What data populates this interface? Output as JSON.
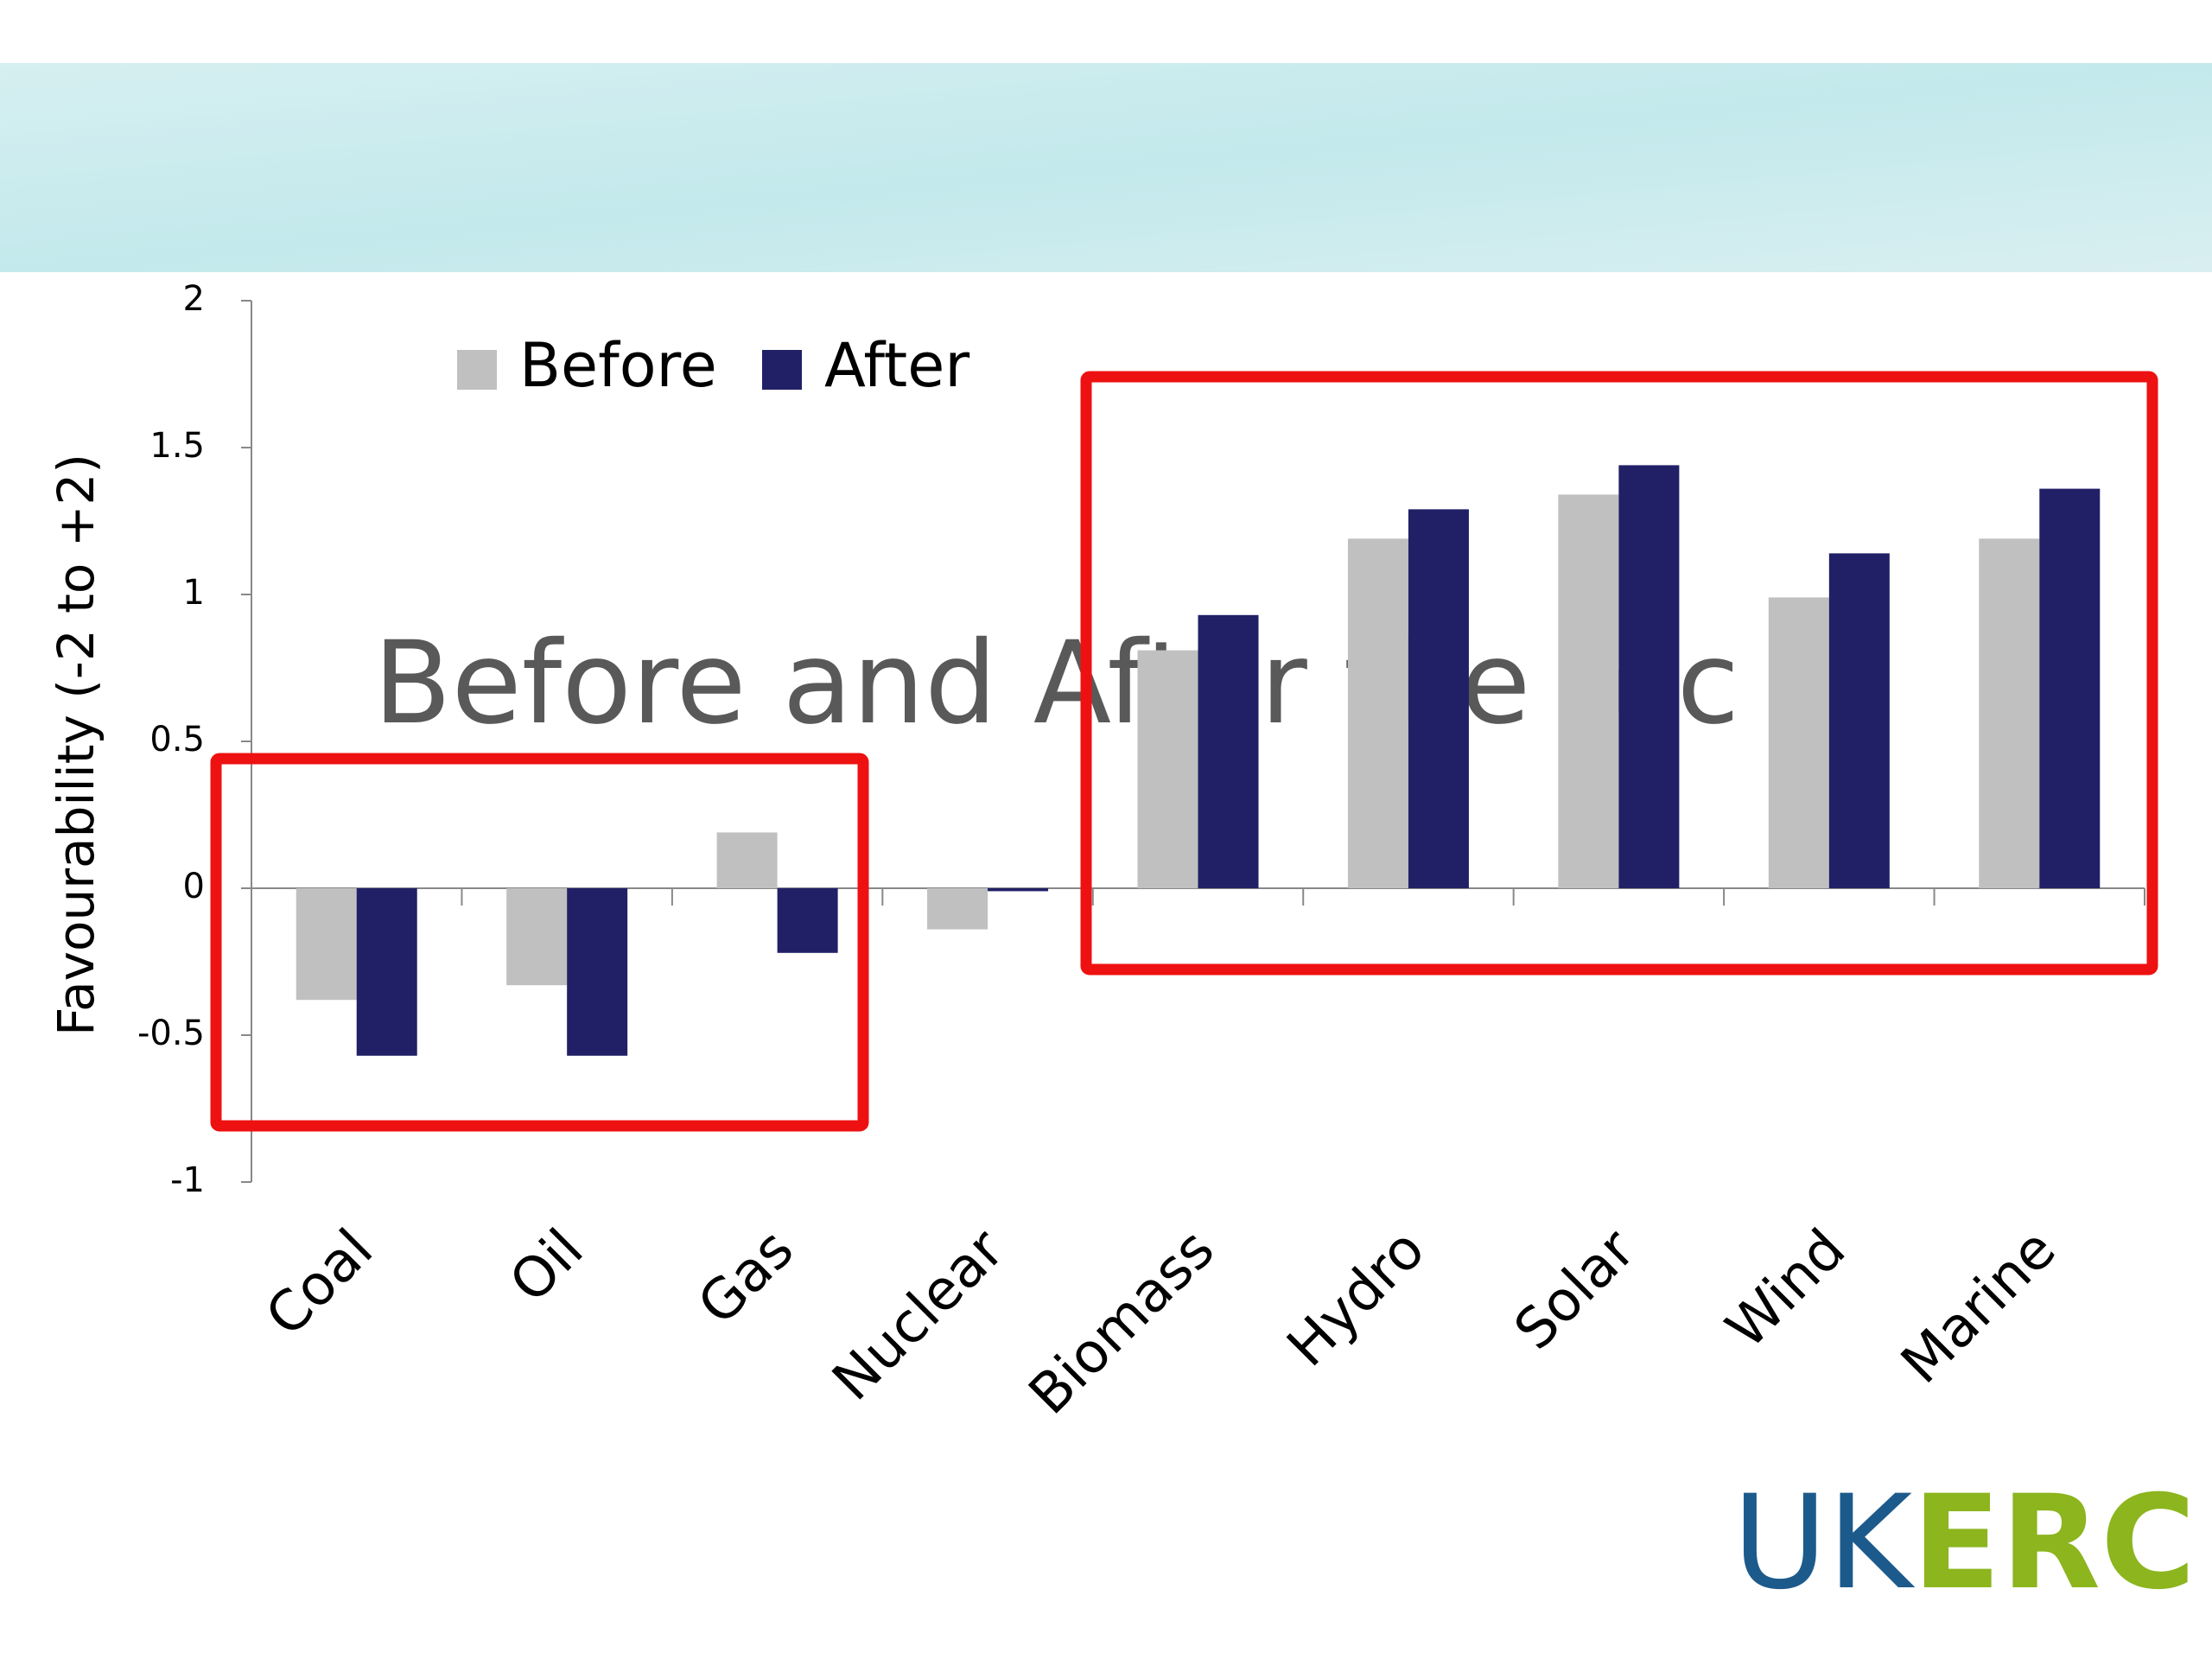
{
  "chart_data": {
    "type": "bar",
    "title": "Before and After the foc",
    "y_label": "Favourability (-2 to +2)",
    "categories": [
      "Coal",
      "Oil",
      "Gas",
      "Nuclear",
      "Biomass",
      "Hydro",
      "Solar",
      "Wind",
      "Marine"
    ],
    "series": [
      {
        "name": "Before",
        "color": "#c0c0c0",
        "values": [
          -0.38,
          -0.33,
          0.19,
          -0.14,
          0.81,
          1.19,
          1.34,
          0.99,
          1.19
        ]
      },
      {
        "name": "After",
        "color": "#212066",
        "values": [
          -0.57,
          -0.57,
          -0.22,
          -0.01,
          0.93,
          1.29,
          1.44,
          1.14,
          1.36
        ]
      }
    ],
    "ylim": [
      -1,
      2
    ],
    "yticks": [
      -1,
      -0.5,
      0,
      0.5,
      1,
      1.5,
      2
    ]
  },
  "logo": {
    "left": "UK",
    "right": "ERC"
  }
}
